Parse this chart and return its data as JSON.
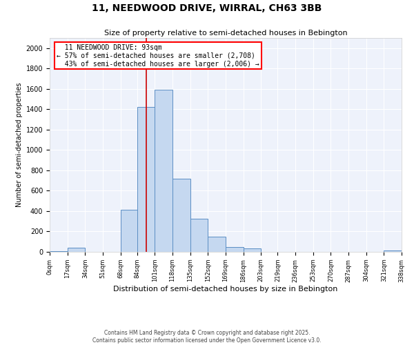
{
  "title": "11, NEEDWOOD DRIVE, WIRRAL, CH63 3BB",
  "subtitle": "Size of property relative to semi-detached houses in Bebington",
  "xlabel": "Distribution of semi-detached houses by size in Bebington",
  "ylabel": "Number of semi-detached properties",
  "bins": [
    0,
    17,
    34,
    51,
    68,
    84,
    101,
    118,
    135,
    152,
    169,
    186,
    203,
    219,
    236,
    253,
    270,
    287,
    304,
    321,
    338
  ],
  "counts": [
    10,
    40,
    0,
    0,
    410,
    1420,
    1590,
    720,
    325,
    150,
    50,
    35,
    0,
    0,
    0,
    0,
    0,
    0,
    0,
    15
  ],
  "bar_color": "#c5d8f0",
  "bar_edge_color": "#5b8ec4",
  "ylim": [
    0,
    2100
  ],
  "yticks": [
    0,
    200,
    400,
    600,
    800,
    1000,
    1200,
    1400,
    1600,
    1800,
    2000
  ],
  "property_line_x": 93,
  "vline_color": "#cc0000",
  "annotation_text": "  11 NEEDWOOD DRIVE: 93sqm  \n← 57% of semi-detached houses are smaller (2,708)\n  43% of semi-detached houses are larger (2,006) →",
  "footer_text": "Contains HM Land Registry data © Crown copyright and database right 2025.\nContains public sector information licensed under the Open Government Licence v3.0.",
  "background_color": "#eef2fb",
  "grid_color": "#ffffff",
  "fig_bg": "#ffffff"
}
